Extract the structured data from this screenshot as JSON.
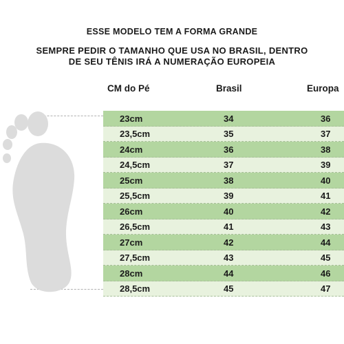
{
  "header": {
    "line1": "ESSE MODELO TEM A FORMA GRANDE",
    "line2": "SEMPRE PEDIR O TAMANHO QUE USA NO BRASIL, DENTRO",
    "line3": "DE SEU TÊNIS IRÁ A NUMERAÇÃO EUROPEIA"
  },
  "table": {
    "columns": [
      "CM do Pé",
      "Brasil",
      "Europa"
    ],
    "rows": [
      {
        "cm": "23cm",
        "brasil": "34",
        "europa": "36"
      },
      {
        "cm": "23,5cm",
        "brasil": "35",
        "europa": "37"
      },
      {
        "cm": "24cm",
        "brasil": "36",
        "europa": "38"
      },
      {
        "cm": "24,5cm",
        "brasil": "37",
        "europa": "39"
      },
      {
        "cm": "25cm",
        "brasil": "38",
        "europa": "40"
      },
      {
        "cm": "25,5cm",
        "brasil": "39",
        "europa": "41"
      },
      {
        "cm": "26cm",
        "brasil": "40",
        "europa": "42"
      },
      {
        "cm": "26,5cm",
        "brasil": "41",
        "europa": "43"
      },
      {
        "cm": "27cm",
        "brasil": "42",
        "europa": "44"
      },
      {
        "cm": "27,5cm",
        "brasil": "43",
        "europa": "45"
      },
      {
        "cm": "28cm",
        "brasil": "44",
        "europa": "46"
      },
      {
        "cm": "28,5cm",
        "brasil": "45",
        "europa": "47"
      }
    ]
  },
  "colors": {
    "row_dark": "#b3d6a0",
    "row_light": "#e8f2de",
    "foot": "#dcdcdc"
  }
}
